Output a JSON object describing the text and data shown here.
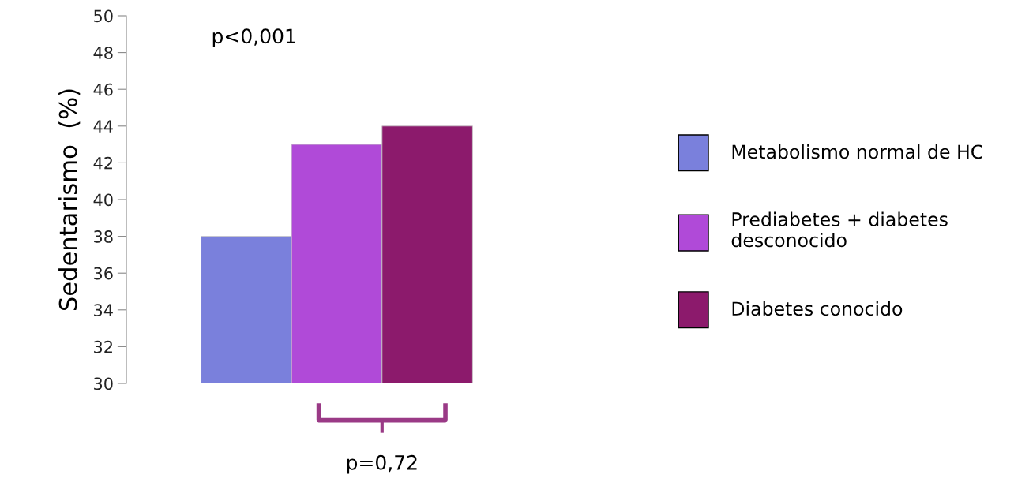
{
  "chart_data": {
    "type": "bar",
    "ylabel": "Sedentarismo  (%)",
    "categories": [
      null
    ],
    "series": [
      {
        "name": "Metabolismo normal de HC",
        "color": "#7a80dc",
        "values": [
          38
        ]
      },
      {
        "name": "Prediabetes + diabetes\ndesconocido",
        "color": "#b04ad8",
        "values": [
          43
        ]
      },
      {
        "name": "Diabetes conocido",
        "color": "#8c1a6c",
        "values": [
          44
        ]
      }
    ],
    "ylim": [
      30,
      50
    ],
    "yticks": [
      30,
      32,
      34,
      36,
      38,
      40,
      42,
      44,
      46,
      48,
      50
    ],
    "grid": false,
    "legend": "right",
    "annotations": [
      "p<0,001",
      "p=0,72"
    ]
  }
}
